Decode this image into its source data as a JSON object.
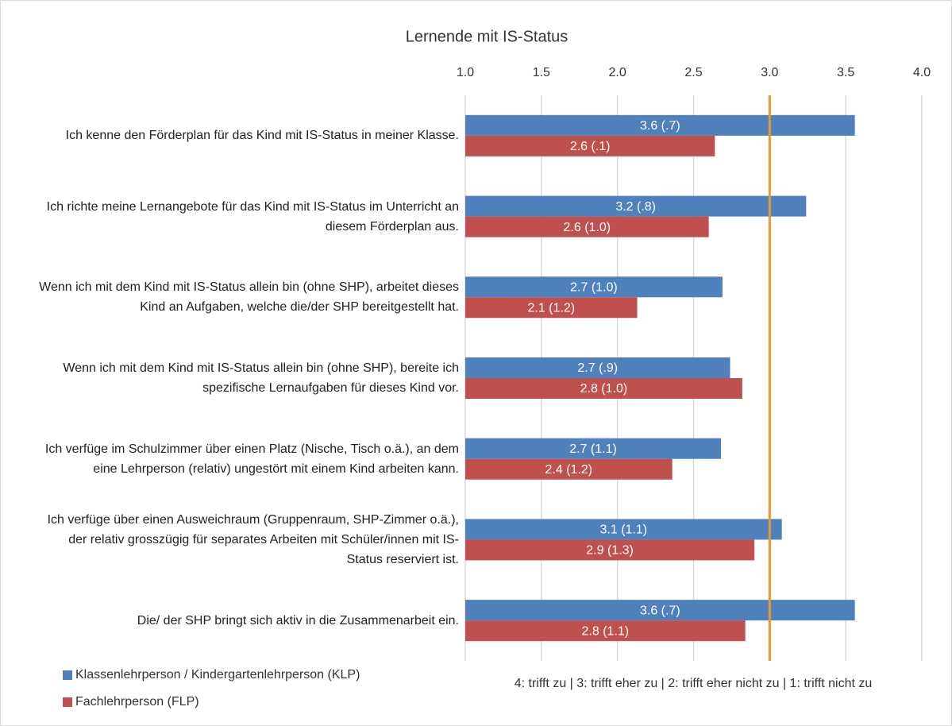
{
  "chart_data": {
    "type": "hbar",
    "title": "Lernende mit IS-Status",
    "x_label": "4: trifft zu | 3: trifft eher zu | 2: trifft eher nicht zu | 1: trifft nicht zu",
    "categories": [
      "Ich kenne den Förderplan für das Kind mit IS-Status in meiner Klasse.",
      "Ich richte meine Lernangebote für das Kind mit IS-Status im Unterricht an diesem Förderplan aus.",
      "Wenn ich mit dem Kind mit IS-Status allein bin (ohne SHP), arbeitet dieses Kind an Aufgaben, welche die/der SHP bereitgestellt hat.",
      "Wenn ich mit dem Kind mit IS-Status allein bin (ohne SHP), bereite ich spezifische Lernaufgaben für dieses Kind vor.",
      "Ich verfüge im Schulzimmer über einen Platz (Nische, Tisch o.ä.), an dem eine Lehrperson (relativ) ungestört mit einem Kind arbeiten kann.",
      "Ich verfüge über einen Ausweichraum (Gruppenraum, SHP-Zimmer o.ä.), der relativ grosszügig für separates Arbeiten mit Schüler/innen mit IS-Status reserviert ist.",
      "Die/ der SHP bringt sich aktiv in die Zusammenarbeit ein."
    ],
    "series": [
      {
        "name": "Klassenlehrperson / Kindergartenlehrperson (KLP)",
        "color": "#4f81bd",
        "values": [
          3.56,
          3.24,
          2.69,
          2.74,
          2.68,
          3.08,
          3.56
        ],
        "value_labels": [
          "3.6 (.7)",
          "3.2 (.8)",
          "2.7 (1.0)",
          "2.7 (.9)",
          "2.7 (1.1)",
          "3.1 (1.1)",
          "3.6 (.7)"
        ]
      },
      {
        "name": "Fachlehrperson (FLP)",
        "color": "#c0504d",
        "values": [
          2.64,
          2.6,
          2.13,
          2.82,
          2.36,
          2.9,
          2.84
        ],
        "value_labels": [
          "2.6 (.1)",
          "2.6 (1.0)",
          "2.1 (1.2)",
          "2.8 (1.0)",
          "2.4 (1.2)",
          "2.9 (1.3)",
          "2.8 (1.1)"
        ]
      }
    ],
    "xlim": [
      1,
      4
    ],
    "xticks": [
      {
        "value": 1,
        "label": "1.0"
      },
      1.5,
      {
        "value": 2,
        "label": "2.0"
      },
      2.5,
      {
        "value": 3,
        "label": "3.0"
      },
      3.5,
      {
        "value": 4,
        "label": "4.0"
      }
    ],
    "grid": true,
    "reference_line": {
      "value": 3,
      "color": "#e59a2b"
    }
  }
}
